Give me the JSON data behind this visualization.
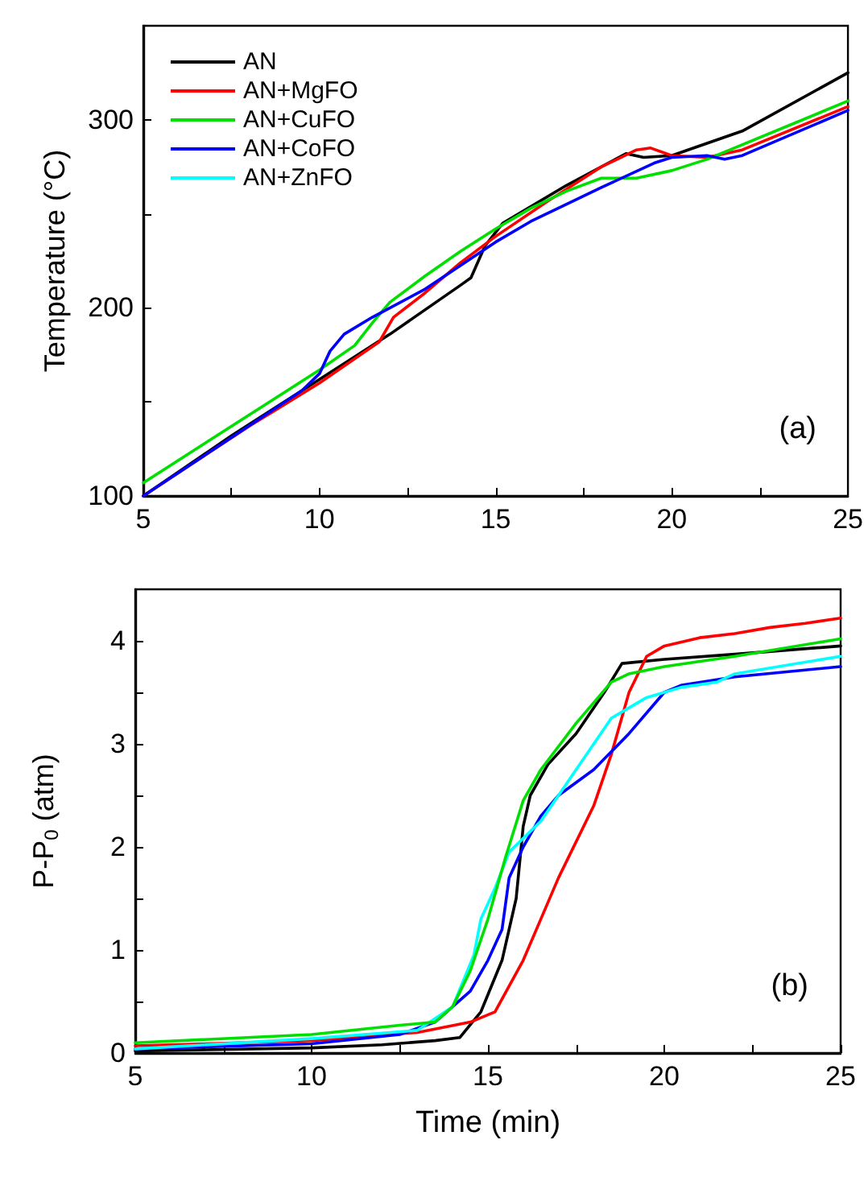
{
  "chart_data": [
    {
      "type": "line",
      "ylabel": "Temperature (°C)",
      "annotations": [
        "(a)"
      ],
      "xlim": [
        5,
        25
      ],
      "xticks": [
        5,
        {
          "value": 7.5,
          "label": null
        },
        10,
        {
          "value": 12.5,
          "label": null
        },
        15,
        {
          "value": 17.5,
          "label": null
        },
        20,
        {
          "value": 22.5,
          "label": null
        },
        25
      ],
      "ylim": [
        100,
        350
      ],
      "yticks": [
        100,
        {
          "value": 150,
          "label": null
        },
        200,
        {
          "value": 250,
          "label": null
        },
        300
      ],
      "legend": "top left",
      "grid": false,
      "marker": "none",
      "line_style": "solid",
      "series": [
        {
          "name": "AN",
          "color": "#000000",
          "x": [
            5,
            7.5,
            10,
            12,
            14,
            14.3,
            14.7,
            15.2,
            17,
            18.7,
            19.2,
            20,
            22,
            25
          ],
          "values": [
            100,
            132,
            162,
            186,
            212,
            216,
            233,
            245,
            265,
            282,
            280,
            281,
            294,
            325
          ]
        },
        {
          "name": "AN+MgFO",
          "color": "#ff0000",
          "x": [
            5,
            8,
            10,
            11.7,
            12.1,
            13,
            14,
            15,
            16.5,
            18,
            19,
            19.4,
            20,
            21,
            22,
            25
          ],
          "values": [
            100,
            137,
            160,
            182,
            195,
            208,
            224,
            238,
            257,
            275,
            284,
            285,
            281,
            280,
            284,
            307
          ]
        },
        {
          "name": "AN+CuFO",
          "color": "#00e000",
          "x": [
            5,
            8,
            10,
            11,
            11.5,
            12,
            13,
            14,
            15,
            16,
            17,
            18,
            19,
            20,
            21,
            25
          ],
          "values": [
            107,
            143,
            167,
            180,
            192,
            203,
            217,
            230,
            242,
            253,
            262,
            269,
            269,
            273,
            279,
            310
          ]
        },
        {
          "name": "AN+CoFO",
          "color": "#0000ff",
          "x": [
            5,
            7.5,
            9.5,
            10,
            10.3,
            10.7,
            11.5,
            13,
            15,
            16,
            18,
            19.5,
            20,
            21,
            21.5,
            22,
            25
          ],
          "values": [
            100,
            131,
            156,
            165,
            177,
            186,
            195,
            210,
            235,
            246,
            264,
            277,
            280,
            281,
            279,
            281,
            305
          ]
        },
        {
          "name": "AN+ZnFO",
          "color": "#00ffff"
        }
      ]
    },
    {
      "type": "line",
      "xlabel": "Time (min)",
      "ylabel": "P-P$_{0}$ (atm)",
      "annotations": [
        "(b)"
      ],
      "xlim": [
        5,
        25
      ],
      "xticks": [
        5,
        {
          "value": 7.5,
          "label": null
        },
        10,
        {
          "value": 12.5,
          "label": null
        },
        15,
        {
          "value": 17.5,
          "label": null
        },
        20,
        {
          "value": 22.5,
          "label": null
        },
        25
      ],
      "ylim": [
        0,
        4.5
      ],
      "yticks": [
        0,
        {
          "value": 0.5,
          "label": null
        },
        1,
        {
          "value": 1.5,
          "label": null
        },
        2,
        {
          "value": 2.5,
          "label": null
        },
        3,
        {
          "value": 3.5,
          "label": null
        },
        4
      ],
      "legend": false,
      "grid": false,
      "marker": "none",
      "line_style": "solid",
      "series": [
        {
          "color": "#000000",
          "x": [
            5,
            10,
            12,
            13.5,
            14.2,
            14.8,
            15.4,
            15.8,
            16,
            16.2,
            16.7,
            17.5,
            18.3,
            18.8,
            20,
            22,
            25
          ],
          "values": [
            0.02,
            0.05,
            0.08,
            0.12,
            0.15,
            0.4,
            0.9,
            1.5,
            2.2,
            2.5,
            2.8,
            3.1,
            3.5,
            3.78,
            3.82,
            3.87,
            3.95
          ]
        },
        {
          "color": "#ff0000",
          "x": [
            5,
            10,
            13,
            14.5,
            15.2,
            16,
            16.5,
            17,
            18,
            18.5,
            19,
            19.5,
            20,
            21,
            22,
            23,
            24,
            25
          ],
          "values": [
            0.07,
            0.12,
            0.2,
            0.3,
            0.4,
            0.9,
            1.3,
            1.7,
            2.4,
            2.9,
            3.5,
            3.85,
            3.95,
            4.03,
            4.07,
            4.13,
            4.17,
            4.22
          ]
        },
        {
          "color": "#0000ff",
          "x": [
            5,
            10,
            12.5,
            13.5,
            14.5,
            15,
            15.4,
            15.6,
            16,
            16.5,
            17,
            18,
            19,
            20,
            20.5,
            22,
            25
          ],
          "values": [
            0.04,
            0.09,
            0.18,
            0.3,
            0.6,
            0.9,
            1.2,
            1.7,
            2.0,
            2.3,
            2.5,
            2.75,
            3.1,
            3.5,
            3.57,
            3.65,
            3.75
          ]
        },
        {
          "color": "#00ffff",
          "x": [
            5,
            10,
            13,
            14,
            14.6,
            14.8,
            15.2,
            15.6,
            16.5,
            17.5,
            18.5,
            19.5,
            20.5,
            21.5,
            22,
            25
          ],
          "values": [
            0.04,
            0.14,
            0.22,
            0.45,
            0.95,
            1.3,
            1.6,
            1.95,
            2.25,
            2.75,
            3.25,
            3.45,
            3.55,
            3.6,
            3.68,
            3.85
          ]
        },
        {
          "color": "#00e000",
          "x": [
            5,
            10,
            12.5,
            13.5,
            14,
            14.5,
            15,
            15.5,
            16,
            16.5,
            17.5,
            18.5,
            19,
            20,
            22,
            25
          ],
          "values": [
            0.1,
            0.18,
            0.27,
            0.3,
            0.45,
            0.8,
            1.3,
            1.9,
            2.45,
            2.75,
            3.2,
            3.6,
            3.68,
            3.75,
            3.85,
            4.02
          ]
        }
      ]
    }
  ]
}
